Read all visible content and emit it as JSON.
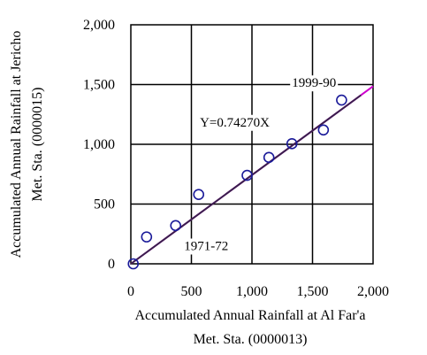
{
  "chart_data": {
    "type": "scatter",
    "xlabel": [
      "Accumulated Annual Rainfall at Al Far'a",
      "Met. Sta. (0000013)"
    ],
    "ylabel": [
      "Accumulated Annual Rainfall at Jericho",
      "Met. Sta. (0000015)"
    ],
    "xlim": [
      0,
      2000
    ],
    "ylim": [
      0,
      2000
    ],
    "x_ticks": [
      "0",
      "500",
      "1,000",
      "1,500",
      "2,000"
    ],
    "y_ticks": [
      "0",
      "500",
      "1,000",
      "1,500",
      "2,000"
    ],
    "grid": true,
    "points": [
      {
        "x": 20,
        "y": 0
      },
      {
        "x": 130,
        "y": 225
      },
      {
        "x": 370,
        "y": 320
      },
      {
        "x": 560,
        "y": 580
      },
      {
        "x": 960,
        "y": 740
      },
      {
        "x": 1140,
        "y": 890
      },
      {
        "x": 1330,
        "y": 1005
      },
      {
        "x": 1590,
        "y": 1120
      },
      {
        "x": 1740,
        "y": 1370
      }
    ],
    "fit_line": {
      "slope": 0.7427,
      "x_range": [
        0,
        2000
      ],
      "color": "#cc00cc",
      "overlay_color": "#3a1f4d"
    },
    "marker_color": "#1a1a99",
    "annotations": [
      {
        "text": "Y=0.74270X",
        "x": 570,
        "y": 1150
      },
      {
        "text": "1999-90",
        "x": 1330,
        "y": 1480
      },
      {
        "text": "1971-72",
        "x": 440,
        "y": 115
      }
    ]
  }
}
